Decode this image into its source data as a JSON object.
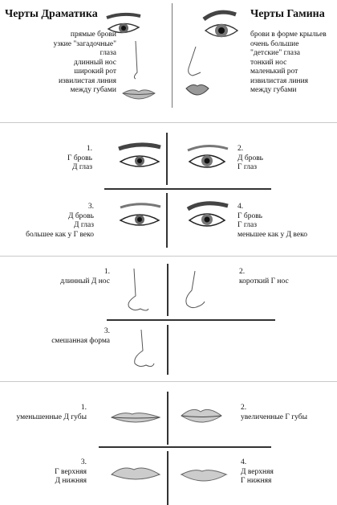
{
  "header": {
    "left_title": "Черты Драматика",
    "right_title": "Черты Гамина",
    "left_traits": [
      "прямые брови",
      "узкие \"загадочные\"",
      "глаза",
      "длинный нос",
      "широкий рот",
      "извилистая линия",
      "между губами"
    ],
    "right_traits": [
      "брови в форме крыльев",
      "очень большие",
      "\"детские\" глаза",
      "тонкий нос",
      "маленький рот",
      "извилистая линия",
      "между губами"
    ]
  },
  "eyes": {
    "q1": {
      "num": "1.",
      "lines": [
        "Г бровь",
        "Д глаз"
      ]
    },
    "q2": {
      "num": "2.",
      "lines": [
        "Д бровь",
        "Г глаз"
      ]
    },
    "q3": {
      "num": "3.",
      "lines": [
        "Д бровь",
        "Д глаз",
        "большее как у Г веко"
      ]
    },
    "q4": {
      "num": "4.",
      "lines": [
        "Г бровь",
        "Г глаз",
        "меньшее как у Д веко"
      ]
    }
  },
  "noses": {
    "q1": {
      "num": "1.",
      "label": "длинный Д нос"
    },
    "q2": {
      "num": "2.",
      "label": "короткий Г нос"
    },
    "q3": {
      "num": "3.",
      "label": "смешанная форма"
    }
  },
  "lips": {
    "q1": {
      "num": "1.",
      "label": "уменьшенные Д губы"
    },
    "q2": {
      "num": "2.",
      "label": "увеличенные Г губы"
    },
    "q3": {
      "num": "3.",
      "lines": [
        "Г верхняя",
        "Д нижняя"
      ]
    },
    "q4": {
      "num": "4.",
      "lines": [
        "Д верхняя",
        "Г нижняя"
      ]
    }
  }
}
